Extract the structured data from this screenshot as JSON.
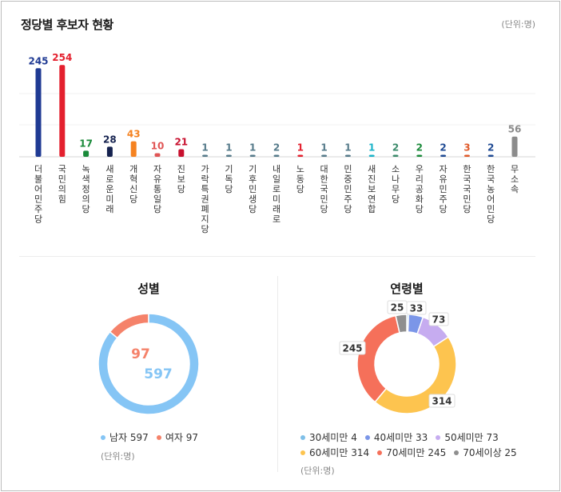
{
  "header": {
    "title": "정당별 후보자 현황",
    "unit": "(단위:명)"
  },
  "chart_data": [
    {
      "type": "bar",
      "title": "정당별 후보자 현황",
      "categories": [
        "더불어민주당",
        "국민의힘",
        "녹색정의당",
        "새로운미래",
        "개혁신당",
        "자유통일당",
        "진보당",
        "가락특권폐지당",
        "기독당",
        "기후민생당",
        "내일로미래로",
        "노동당",
        "대한국민당",
        "민중민주당",
        "새진보연합",
        "소나무당",
        "우리공화당",
        "자유민주당",
        "한국국민당",
        "한국농어민당",
        "무소속"
      ],
      "values": [
        245,
        254,
        17,
        28,
        43,
        10,
        21,
        1,
        1,
        1,
        2,
        1,
        1,
        1,
        1,
        2,
        2,
        2,
        3,
        2,
        56
      ],
      "colors": [
        "#1f3a93",
        "#e4202e",
        "#1a8a3a",
        "#15224f",
        "#f58220",
        "#e05555",
        "#c8102e",
        "#557a8a",
        "#557a8a",
        "#557a8a",
        "#557a8a",
        "#e4202e",
        "#557a8a",
        "#557a8a",
        "#1ab3c8",
        "#3a8a6a",
        "#1a8a3a",
        "#1f4a93",
        "#e05a2a",
        "#1f4a93",
        "#8c8c8c"
      ],
      "ylim": [
        0,
        270
      ]
    },
    {
      "type": "pie",
      "title": "성별",
      "categories": [
        "남자",
        "여자"
      ],
      "values": [
        597,
        97
      ],
      "colors": [
        "#85c5f5",
        "#f5826a"
      ],
      "unit": "(단위:명)"
    },
    {
      "type": "pie",
      "title": "연령별",
      "categories": [
        "30세미만",
        "40세미만",
        "50세미만",
        "60세미만",
        "70세미만",
        "70세이상"
      ],
      "values": [
        4,
        33,
        73,
        314,
        245,
        25
      ],
      "colors": [
        "#7fbfe8",
        "#7b96e8",
        "#c6acf0",
        "#fdc44f",
        "#f5705a",
        "#8f8f8f"
      ],
      "unit": "(단위:명)"
    }
  ],
  "gender": {
    "title": "성별",
    "unit": "(단위:명)"
  },
  "age": {
    "title": "연령별",
    "unit": "(단위:명)"
  }
}
